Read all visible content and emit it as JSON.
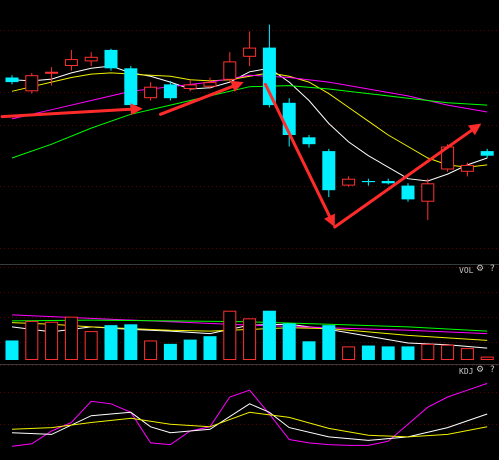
{
  "panels": {
    "vol": {
      "label": "VOL",
      "gear_icon": "gear-icon",
      "help_label": "?"
    },
    "kdj": {
      "label": "KDJ",
      "gear_icon": "gear-icon",
      "help_label": "?"
    }
  },
  "colors": {
    "background": "#000000",
    "grid": "#5a0000",
    "up": "#ff3030",
    "down": "#00f0ff",
    "ma5": "#ffffff",
    "ma10": "#f0f000",
    "ma20": "#ff00ff",
    "ma60": "#00ff00",
    "arrow": "#ff2b2b"
  },
  "chart_data": [
    {
      "type": "candlestick",
      "title": "",
      "grid": true,
      "candles": [
        {
          "o": 75.0,
          "c": 73.0,
          "h": 76.0,
          "l": 72.0
        },
        {
          "o": 69.0,
          "c": 76.0,
          "h": 77.0,
          "l": 68.0
        },
        {
          "o": 77.0,
          "c": 77.5,
          "h": 79.5,
          "l": 71.5
        },
        {
          "o": 80.0,
          "c": 83.0,
          "h": 87.0,
          "l": 78.0
        },
        {
          "o": 82.0,
          "c": 84.0,
          "h": 86.0,
          "l": 80.0
        },
        {
          "o": 87.0,
          "c": 79.0,
          "h": 87.5,
          "l": 78.0
        },
        {
          "o": 79.0,
          "c": 63.0,
          "h": 80.0,
          "l": 62.0
        },
        {
          "o": 66.0,
          "c": 71.0,
          "h": 73.0,
          "l": 65.0
        },
        {
          "o": 72.0,
          "c": 66.0,
          "h": 73.5,
          "l": 65.0
        },
        {
          "o": 70.0,
          "c": 72.0,
          "h": 74.0,
          "l": 69.0
        },
        {
          "o": 71.0,
          "c": 73.0,
          "h": 75.0,
          "l": 70.0
        },
        {
          "o": 74.0,
          "c": 82.0,
          "h": 86.0,
          "l": 73.0
        },
        {
          "o": 84.0,
          "c": 88.0,
          "h": 95.0,
          "l": 80.0
        },
        {
          "o": 88.0,
          "c": 63.0,
          "h": 98.0,
          "l": 62.0
        },
        {
          "o": 64.0,
          "c": 50.0,
          "h": 66.0,
          "l": 45.0
        },
        {
          "o": 49.0,
          "c": 46.0,
          "h": 50.0,
          "l": 44.5
        },
        {
          "o": 43.0,
          "c": 26.0,
          "h": 44.0,
          "l": 23.0
        },
        {
          "o": 28.0,
          "c": 31.0,
          "h": 32.0,
          "l": 27.5
        },
        {
          "o": 30.0,
          "c": 29.5,
          "h": 31.0,
          "l": 28.0
        },
        {
          "o": 30.0,
          "c": 29.0,
          "h": 31.0,
          "l": 28.5
        },
        {
          "o": 28.0,
          "c": 22.0,
          "h": 29.0,
          "l": 21.0
        },
        {
          "o": 21.0,
          "c": 29.0,
          "h": 31.0,
          "l": 13.0
        },
        {
          "o": 35.0,
          "c": 45.0,
          "h": 46.0,
          "l": 34.0
        },
        {
          "o": 34.0,
          "c": 37.0,
          "h": 38.0,
          "l": 32.0
        },
        {
          "o": 43.0,
          "c": 41.0,
          "h": 44.0,
          "l": 40.0
        }
      ],
      "ma": [
        {
          "color": "#ffffff",
          "values": [
            [
              0,
              74
            ],
            [
              1,
              73.5
            ],
            [
              2,
              74.3
            ],
            [
              3,
              77
            ],
            [
              4,
              79
            ],
            [
              5,
              80
            ],
            [
              6,
              77
            ],
            [
              7,
              75.5
            ],
            [
              8,
              73
            ],
            [
              9,
              70
            ],
            [
              10,
              70.5
            ],
            [
              11,
              73
            ],
            [
              12,
              77.5
            ],
            [
              13,
              79
            ],
            [
              14,
              73
            ],
            [
              15,
              65
            ],
            [
              16,
              55
            ],
            [
              17,
              47
            ],
            [
              18,
              41
            ],
            [
              19,
              36
            ],
            [
              20,
              31
            ],
            [
              21,
              30
            ],
            [
              22,
              33
            ],
            [
              23,
              37
            ],
            [
              24,
              40
            ]
          ]
        },
        {
          "color": "#f0f000",
          "values": [
            [
              0,
              69
            ],
            [
              1,
              71
            ],
            [
              2,
              73
            ],
            [
              3,
              75
            ],
            [
              4,
              76.5
            ],
            [
              5,
              77
            ],
            [
              6,
              76.5
            ],
            [
              7,
              76
            ],
            [
              8,
              75.5
            ],
            [
              9,
              74
            ],
            [
              10,
              73.5
            ],
            [
              11,
              74
            ],
            [
              12,
              75.5
            ],
            [
              13,
              77
            ],
            [
              14,
              75.5
            ],
            [
              15,
              73
            ],
            [
              16,
              68
            ],
            [
              17,
              62
            ],
            [
              18,
              56
            ],
            [
              19,
              50
            ],
            [
              20,
              45
            ],
            [
              21,
              40
            ],
            [
              22,
              37
            ],
            [
              23,
              36
            ],
            [
              24,
              37
            ]
          ]
        },
        {
          "color": "#ff00ff",
          "values": [
            [
              0,
              57
            ],
            [
              2,
              61
            ],
            [
              4,
              65
            ],
            [
              6,
              69
            ],
            [
              8,
              71
            ],
            [
              10,
              73
            ],
            [
              12,
              76
            ],
            [
              14,
              75
            ],
            [
              16,
              73
            ],
            [
              18,
              70
            ],
            [
              20,
              67
            ],
            [
              22,
              63
            ],
            [
              24,
              60
            ]
          ]
        },
        {
          "color": "#00ff00",
          "values": [
            [
              0,
              40
            ],
            [
              2,
              46
            ],
            [
              4,
              53
            ],
            [
              6,
              59
            ],
            [
              8,
              63
            ],
            [
              10,
              67
            ],
            [
              12,
              71
            ],
            [
              14,
              71.5
            ],
            [
              16,
              70
            ],
            [
              18,
              68
            ],
            [
              20,
              66
            ],
            [
              22,
              64
            ],
            [
              24,
              63
            ]
          ]
        }
      ],
      "annotations": [
        {
          "type": "arrow",
          "from": [
            -0.5,
            58
          ],
          "to": [
            6.6,
            61.5
          ]
        },
        {
          "type": "arrow",
          "from": [
            7.5,
            59
          ],
          "to": [
            11.7,
            73
          ]
        },
        {
          "type": "arrow",
          "from": [
            12.8,
            72
          ],
          "to": [
            16.3,
            10
          ]
        },
        {
          "type": "arrow",
          "from": [
            16.3,
            10
          ],
          "to": [
            23.7,
            55
          ]
        }
      ]
    },
    {
      "type": "bar",
      "title": "VOL",
      "grid": true,
      "values": [
        2.3,
        4.6,
        4.5,
        5.1,
        3.4,
        4.1,
        4.2,
        2.3,
        1.9,
        2.4,
        2.8,
        5.8,
        4.9,
        5.8,
        4.3,
        2.2,
        4.1,
        1.6,
        1.7,
        1.6,
        1.6,
        1.9,
        1.8,
        1.4,
        0.4
      ],
      "up": [
        false,
        true,
        true,
        true,
        true,
        false,
        false,
        true,
        false,
        false,
        false,
        true,
        true,
        false,
        false,
        false,
        false,
        true,
        false,
        false,
        false,
        true,
        true,
        true,
        true
      ],
      "ma": [
        {
          "color": "#ffffff",
          "values": [
            [
              0,
              3.9
            ],
            [
              2,
              3.3
            ],
            [
              4,
              3.9
            ],
            [
              6,
              3.6
            ],
            [
              8,
              3.4
            ],
            [
              10,
              3.1
            ],
            [
              12,
              4.1
            ],
            [
              14,
              4.2
            ],
            [
              16,
              3.6
            ],
            [
              18,
              2.8
            ],
            [
              20,
              2.0
            ],
            [
              22,
              1.8
            ],
            [
              24,
              1.4
            ]
          ]
        },
        {
          "color": "#f0f000",
          "values": [
            [
              0,
              4.4
            ],
            [
              2,
              4.2
            ],
            [
              4,
              3.9
            ],
            [
              6,
              3.7
            ],
            [
              8,
              3.5
            ],
            [
              10,
              3.4
            ],
            [
              12,
              3.6
            ],
            [
              14,
              3.8
            ],
            [
              16,
              3.7
            ],
            [
              18,
              3.3
            ],
            [
              20,
              2.9
            ],
            [
              22,
              2.6
            ],
            [
              24,
              2.3
            ]
          ]
        },
        {
          "color": "#ff00ff",
          "values": [
            [
              0,
              5.3
            ],
            [
              4,
              4.9
            ],
            [
              8,
              4.5
            ],
            [
              12,
              4.1
            ],
            [
              16,
              3.8
            ],
            [
              20,
              3.5
            ],
            [
              24,
              3.1
            ]
          ]
        },
        {
          "color": "#00ff00",
          "values": [
            [
              0,
              4.6
            ],
            [
              4,
              4.7
            ],
            [
              8,
              4.6
            ],
            [
              12,
              4.5
            ],
            [
              16,
              4.2
            ],
            [
              20,
              3.9
            ],
            [
              24,
              3.4
            ]
          ]
        }
      ]
    },
    {
      "type": "line",
      "title": "KDJ",
      "grid": true,
      "series": [
        {
          "color": "#ff00ff",
          "values": [
            [
              0,
              2
            ],
            [
              1,
              5
            ],
            [
              2,
              20
            ],
            [
              3,
              30
            ],
            [
              4,
              55
            ],
            [
              5,
              52
            ],
            [
              6,
              42
            ],
            [
              7,
              6
            ],
            [
              8,
              4
            ],
            [
              9,
              20
            ],
            [
              10,
              25
            ],
            [
              11,
              60
            ],
            [
              12,
              68
            ],
            [
              13,
              40
            ],
            [
              14,
              10
            ],
            [
              15,
              6
            ],
            [
              16,
              4
            ],
            [
              17,
              3
            ],
            [
              18,
              3
            ],
            [
              19,
              8
            ],
            [
              20,
              28
            ],
            [
              21,
              48
            ],
            [
              22,
              60
            ],
            [
              23,
              68
            ],
            [
              24,
              76
            ]
          ]
        },
        {
          "color": "#ffffff",
          "values": [
            [
              0,
              18
            ],
            [
              2,
              16
            ],
            [
              4,
              38
            ],
            [
              6,
              42
            ],
            [
              7,
              25
            ],
            [
              8,
              18
            ],
            [
              10,
              22
            ],
            [
              12,
              52
            ],
            [
              13,
              42
            ],
            [
              14,
              24
            ],
            [
              16,
              13
            ],
            [
              18,
              9
            ],
            [
              20,
              13
            ],
            [
              22,
              24
            ],
            [
              24,
              40
            ]
          ]
        },
        {
          "color": "#f0f000",
          "values": [
            [
              0,
              22
            ],
            [
              2,
              24
            ],
            [
              4,
              30
            ],
            [
              6,
              35
            ],
            [
              8,
              28
            ],
            [
              10,
              25
            ],
            [
              12,
              42
            ],
            [
              14,
              36
            ],
            [
              16,
              23
            ],
            [
              18,
              15
            ],
            [
              20,
              13
            ],
            [
              22,
              16
            ],
            [
              24,
              25
            ]
          ]
        }
      ]
    }
  ]
}
